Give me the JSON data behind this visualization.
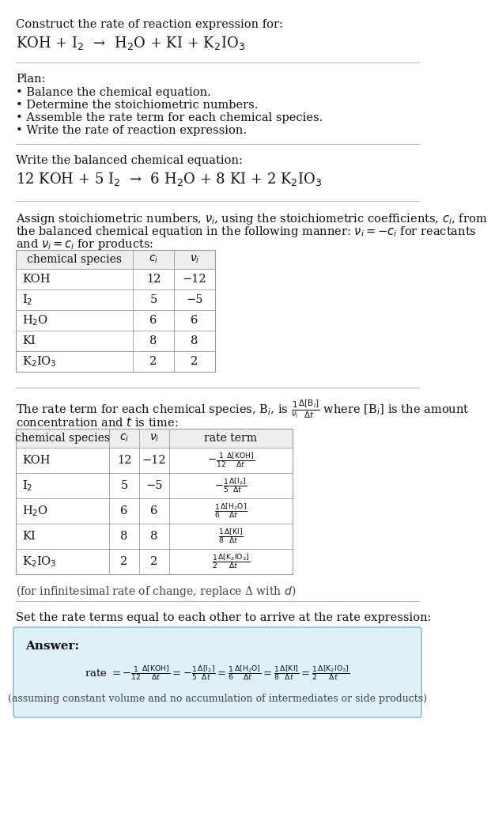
{
  "bg_color": "#ffffff",
  "section1_title": "Construct the rate of reaction expression for:",
  "section1_eq": "KOH + I$_2$  →  H$_2$O + KI + K$_2$IO$_3$",
  "plan_title": "Plan:",
  "plan_items": [
    "• Balance the chemical equation.",
    "• Determine the stoichiometric numbers.",
    "• Assemble the rate term for each chemical species.",
    "• Write the rate of reaction expression."
  ],
  "balanced_title": "Write the balanced chemical equation:",
  "balanced_eq": "12 KOH + 5 I$_2$  →  6 H$_2$O + 8 KI + 2 K$_2$IO$_3$",
  "assign_text1": "Assign stoichiometric numbers, $\\nu_i$, using the stoichiometric coefficients, $c_i$, from",
  "assign_text2": "the balanced chemical equation in the following manner: $\\nu_i = -c_i$ for reactants",
  "assign_text3": "and $\\nu_i = c_i$ for products:",
  "table1_headers": [
    "chemical species",
    "$c_i$",
    "$\\nu_i$"
  ],
  "table1_rows": [
    [
      "KOH",
      "12",
      "−12"
    ],
    [
      "I$_2$",
      "5",
      "−5"
    ],
    [
      "H$_2$O",
      "6",
      "6"
    ],
    [
      "KI",
      "8",
      "8"
    ],
    [
      "K$_2$IO$_3$",
      "2",
      "2"
    ]
  ],
  "rate_text1": "The rate term for each chemical species, B$_i$, is $\\frac{1}{\\nu_i}\\frac{\\Delta[\\mathrm{B}_i]}{\\Delta t}$ where [B$_i$] is the amount",
  "rate_text2": "concentration and $t$ is time:",
  "table2_headers": [
    "chemical species",
    "$c_i$",
    "$\\nu_i$",
    "rate term"
  ],
  "table2_rows": [
    [
      "KOH",
      "12",
      "−12",
      "$-\\frac{1}{12}\\frac{\\Delta[\\mathrm{KOH}]}{\\Delta t}$"
    ],
    [
      "I$_2$",
      "5",
      "−5",
      "$-\\frac{1}{5}\\frac{\\Delta[\\mathrm{I_2}]}{\\Delta t}$"
    ],
    [
      "H$_2$O",
      "6",
      "6",
      "$\\frac{1}{6}\\frac{\\Delta[\\mathrm{H_2O}]}{\\Delta t}$"
    ],
    [
      "KI",
      "8",
      "8",
      "$\\frac{1}{8}\\frac{\\Delta[\\mathrm{KI}]}{\\Delta t}$"
    ],
    [
      "K$_2$IO$_3$",
      "2",
      "2",
      "$\\frac{1}{2}\\frac{\\Delta[\\mathrm{K_2IO_3}]}{\\Delta t}$"
    ]
  ],
  "infinitesimal_text": "(for infinitesimal rate of change, replace Δ with $d$)",
  "set_text": "Set the rate terms equal to each other to arrive at the rate expression:",
  "answer_box_color": "#dff0f7",
  "answer_border_color": "#99bbcc",
  "answer_label": "Answer:",
  "answer_eq": "rate $= -\\frac{1}{12}\\frac{\\Delta[\\mathrm{KOH}]}{\\Delta t} = -\\frac{1}{5}\\frac{\\Delta[\\mathrm{I_2}]}{\\Delta t} = \\frac{1}{6}\\frac{\\Delta[\\mathrm{H_2O}]}{\\Delta t} = \\frac{1}{8}\\frac{\\Delta[\\mathrm{KI}]}{\\Delta t} = \\frac{1}{2}\\frac{\\Delta[\\mathrm{K_2IO_3}]}{\\Delta t}$",
  "answer_note": "(assuming constant volume and no accumulation of intermediates or side products)"
}
